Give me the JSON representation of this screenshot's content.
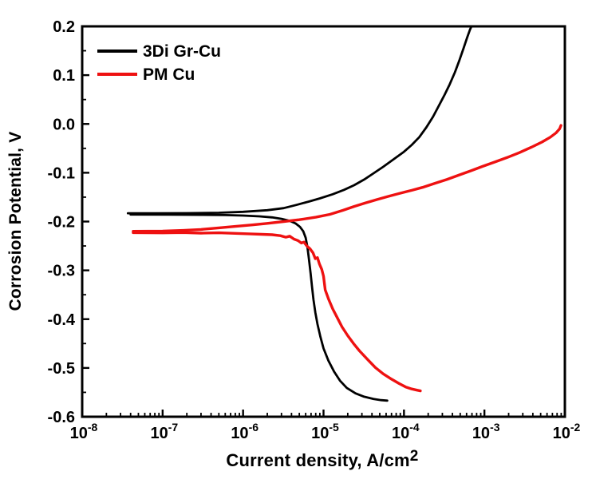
{
  "figure": {
    "ylabel": "Corrosion Potential, V",
    "xlabel_base": "Current density, A/cm",
    "xlabel_sup": "2",
    "background_color": "#ffffff",
    "frame_color": "#000000"
  },
  "chart_data": {
    "type": "line",
    "title": "",
    "xlabel": "Current density, A/cm^2",
    "ylabel": "Corrosion Potential, V",
    "x_scale": "log",
    "xlim": [
      1e-08,
      0.01
    ],
    "ylim": [
      -0.6,
      0.2
    ],
    "grid": false,
    "legend_position": "top-left",
    "x_ticks_exponents": [
      -8,
      -7,
      -6,
      -5,
      -4,
      -3,
      -2
    ],
    "x_tick_labels": [
      "10^-8",
      "10^-7",
      "10^-6",
      "10^-5",
      "10^-4",
      "10^-3",
      "10^-2"
    ],
    "y_ticks": [
      0.2,
      0.1,
      0.0,
      -0.1,
      -0.2,
      -0.3,
      -0.4,
      -0.5,
      -0.6
    ],
    "y_tick_labels": [
      "0.2",
      "0.1",
      "0.0",
      "-0.1",
      "-0.2",
      "-0.3",
      "-0.4",
      "-0.5",
      "-0.6"
    ],
    "y_minor_step": 0.05,
    "series": [
      {
        "name": "3Di Gr-Cu",
        "color": "#000000",
        "width": 2.8,
        "branches": {
          "anodic": [
            [
              3.7e-08,
              -0.183
            ],
            [
              8e-08,
              -0.183
            ],
            [
              2e-07,
              -0.1828
            ],
            [
              5e-07,
              -0.182
            ],
            [
              1e-06,
              -0.18
            ],
            [
              2e-06,
              -0.1768
            ],
            [
              3.2e-06,
              -0.1725
            ],
            [
              4.6e-06,
              -0.166
            ],
            [
              6.5e-06,
              -0.1592
            ],
            [
              9e-06,
              -0.1525
            ],
            [
              1.3e-05,
              -0.144
            ],
            [
              1.8e-05,
              -0.135
            ],
            [
              2.4e-05,
              -0.1255
            ],
            [
              3.2e-05,
              -0.114
            ],
            [
              4.2e-05,
              -0.101
            ],
            [
              5.5e-05,
              -0.088
            ],
            [
              7.5e-05,
              -0.072
            ],
            [
              0.0001,
              -0.057
            ],
            [
              0.000125,
              -0.043
            ],
            [
              0.000155,
              -0.027
            ],
            [
              0.00019,
              -0.007
            ],
            [
              0.00023,
              0.015
            ],
            [
              0.000275,
              0.039
            ],
            [
              0.00032,
              0.06
            ],
            [
              0.00037,
              0.081
            ],
            [
              0.00043,
              0.106
            ],
            [
              0.00049,
              0.131
            ],
            [
              0.00055,
              0.155
            ],
            [
              0.00061,
              0.177
            ],
            [
              0.00066,
              0.193
            ],
            [
              0.00069,
              0.2
            ]
          ],
          "cathodic": [
            [
              4e-08,
              -0.1856
            ],
            [
              1.2e-07,
              -0.186
            ],
            [
              3e-07,
              -0.1863
            ],
            [
              6e-07,
              -0.1868
            ],
            [
              1e-06,
              -0.1878
            ],
            [
              1.6e-06,
              -0.1893
            ],
            [
              2.3e-06,
              -0.1915
            ],
            [
              3e-06,
              -0.1945
            ],
            [
              3.8e-06,
              -0.1985
            ],
            [
              4.5e-06,
              -0.204
            ],
            [
              5.1e-06,
              -0.211
            ],
            [
              5.6e-06,
              -0.22
            ],
            [
              6e-06,
              -0.233
            ],
            [
              6.3e-06,
              -0.252
            ],
            [
              6.6e-06,
              -0.278
            ],
            [
              6.9e-06,
              -0.306
            ],
            [
              7.2e-06,
              -0.334
            ],
            [
              7.5e-06,
              -0.36
            ],
            [
              7.9e-06,
              -0.386
            ],
            [
              8.4e-06,
              -0.41
            ],
            [
              9.1e-06,
              -0.435
            ],
            [
              1e-05,
              -0.46
            ],
            [
              1.15e-05,
              -0.485
            ],
            [
              1.35e-05,
              -0.507
            ],
            [
              1.6e-05,
              -0.526
            ],
            [
              1.95e-05,
              -0.541
            ],
            [
              2.5e-05,
              -0.552
            ],
            [
              3.2e-05,
              -0.559
            ],
            [
              4.2e-05,
              -0.5635
            ],
            [
              5.2e-05,
              -0.566
            ],
            [
              6.2e-05,
              -0.567
            ]
          ]
        }
      },
      {
        "name": "PM Cu",
        "color": "#ee1111",
        "width": 3.4,
        "branches": {
          "anodic": [
            [
              4.3e-08,
              -0.22
            ],
            [
              1e-07,
              -0.2196
            ],
            [
              1.8e-07,
              -0.2182
            ],
            [
              3e-07,
              -0.2162
            ],
            [
              5e-07,
              -0.213
            ],
            [
              8e-07,
              -0.21
            ],
            [
              1.3e-06,
              -0.2068
            ],
            [
              2e-06,
              -0.2038
            ],
            [
              3.2e-06,
              -0.2
            ],
            [
              5e-06,
              -0.1962
            ],
            [
              8e-06,
              -0.1912
            ],
            [
              1.2e-05,
              -0.1852
            ],
            [
              1.75e-05,
              -0.177
            ],
            [
              2.4e-05,
              -0.169
            ],
            [
              3.3e-05,
              -0.162
            ],
            [
              4.6e-05,
              -0.155
            ],
            [
              6.5e-05,
              -0.148
            ],
            [
              9e-05,
              -0.142
            ],
            [
              0.000125,
              -0.136
            ],
            [
              0.00017,
              -0.13
            ],
            [
              0.00024,
              -0.122
            ],
            [
              0.00034,
              -0.114
            ],
            [
              0.00048,
              -0.105
            ],
            [
              0.00068,
              -0.096
            ],
            [
              0.00095,
              -0.087
            ],
            [
              0.00135,
              -0.078
            ],
            [
              0.0019,
              -0.069
            ],
            [
              0.0027,
              -0.059
            ],
            [
              0.0038,
              -0.048
            ],
            [
              0.0052,
              -0.037
            ],
            [
              0.0066,
              -0.027
            ],
            [
              0.0078,
              -0.018
            ],
            [
              0.0086,
              -0.01
            ],
            [
              0.00895,
              -0.003
            ]
          ],
          "cathodic": [
            [
              4.3e-08,
              -0.2228
            ],
            [
              1e-07,
              -0.2232
            ],
            [
              1.8e-07,
              -0.2226
            ],
            [
              3e-07,
              -0.2238
            ],
            [
              5e-07,
              -0.223
            ],
            [
              8e-07,
              -0.2242
            ],
            [
              1.2e-06,
              -0.2252
            ],
            [
              1.7e-06,
              -0.2262
            ],
            [
              2.3e-06,
              -0.227
            ],
            [
              2.9e-06,
              -0.229
            ],
            [
              3.4e-06,
              -0.232
            ],
            [
              3.8e-06,
              -0.23
            ],
            [
              4.3e-06,
              -0.236
            ],
            [
              4.8e-06,
              -0.239
            ],
            [
              5.3e-06,
              -0.244
            ],
            [
              5.7e-06,
              -0.242
            ],
            [
              6.2e-06,
              -0.25
            ],
            [
              6.8e-06,
              -0.256
            ],
            [
              7.4e-06,
              -0.264
            ],
            [
              7.9e-06,
              -0.276
            ],
            [
              8.4e-06,
              -0.274
            ],
            [
              8.9e-06,
              -0.287
            ],
            [
              9.5e-06,
              -0.298
            ],
            [
              1e-05,
              -0.312
            ],
            [
              1.05e-05,
              -0.34
            ],
            [
              1.15e-05,
              -0.358
            ],
            [
              1.3e-05,
              -0.379
            ],
            [
              1.47e-05,
              -0.396
            ],
            [
              1.7e-05,
              -0.416
            ],
            [
              2e-05,
              -0.434
            ],
            [
              2.36e-05,
              -0.45
            ],
            [
              2.8e-05,
              -0.465
            ],
            [
              3.5e-05,
              -0.482
            ],
            [
              4.4e-05,
              -0.499
            ],
            [
              5.5e-05,
              -0.512
            ],
            [
              7e-05,
              -0.523
            ],
            [
              8.7e-05,
              -0.532
            ],
            [
              0.000105,
              -0.539
            ],
            [
              0.000125,
              -0.543
            ],
            [
              0.000145,
              -0.5455
            ],
            [
              0.00016,
              -0.547
            ]
          ]
        }
      }
    ]
  }
}
